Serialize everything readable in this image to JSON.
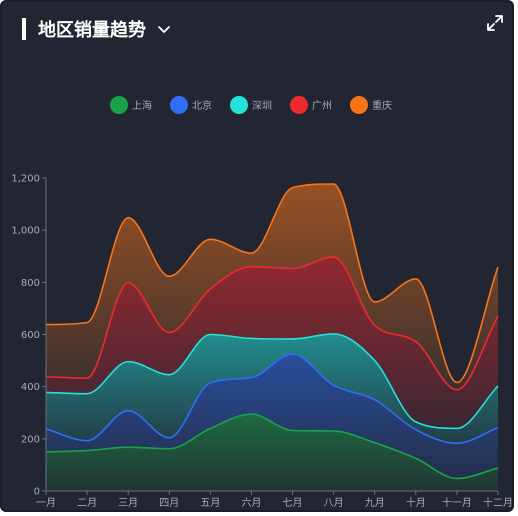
{
  "header": {
    "title": "地区销量趋势",
    "chevron_icon": "chevron-down-icon",
    "expand_icon": "expand-icon"
  },
  "colors": {
    "background": "#222633",
    "axis": "#6b7080",
    "tick_text": "#a7abb8",
    "legend_text": "#a7abb8"
  },
  "chart_data": {
    "type": "area",
    "stacked": true,
    "smooth": true,
    "categories": [
      "一月",
      "二月",
      "三月",
      "四月",
      "五月",
      "六月",
      "七月",
      "八月",
      "九月",
      "十月",
      "十一月",
      "十二月"
    ],
    "ylim": [
      0,
      1200
    ],
    "yticks": [
      "0",
      "200",
      "400",
      "600",
      "800",
      "1,000",
      "1,200"
    ],
    "legend_position": "top-center",
    "series": [
      {
        "name": "上海",
        "color": "#1aa24a",
        "values": [
          150,
          155,
          168,
          162,
          240,
          295,
          232,
          230,
          185,
          125,
          48,
          88
        ]
      },
      {
        "name": "北京",
        "color": "#2f6ef5",
        "values": [
          88,
          38,
          140,
          42,
          175,
          140,
          293,
          175,
          165,
          110,
          135,
          155
        ]
      },
      {
        "name": "深圳",
        "color": "#23e2d8",
        "values": [
          140,
          180,
          188,
          242,
          185,
          150,
          58,
          197,
          150,
          30,
          57,
          160
        ]
      },
      {
        "name": "广州",
        "color": "#ee2a2e",
        "values": [
          60,
          60,
          302,
          162,
          175,
          275,
          270,
          295,
          135,
          308,
          148,
          268
        ]
      },
      {
        "name": "重庆",
        "color": "#f87418",
        "values": [
          200,
          213,
          250,
          215,
          190,
          52,
          310,
          280,
          90,
          240,
          28,
          188
        ]
      }
    ]
  }
}
